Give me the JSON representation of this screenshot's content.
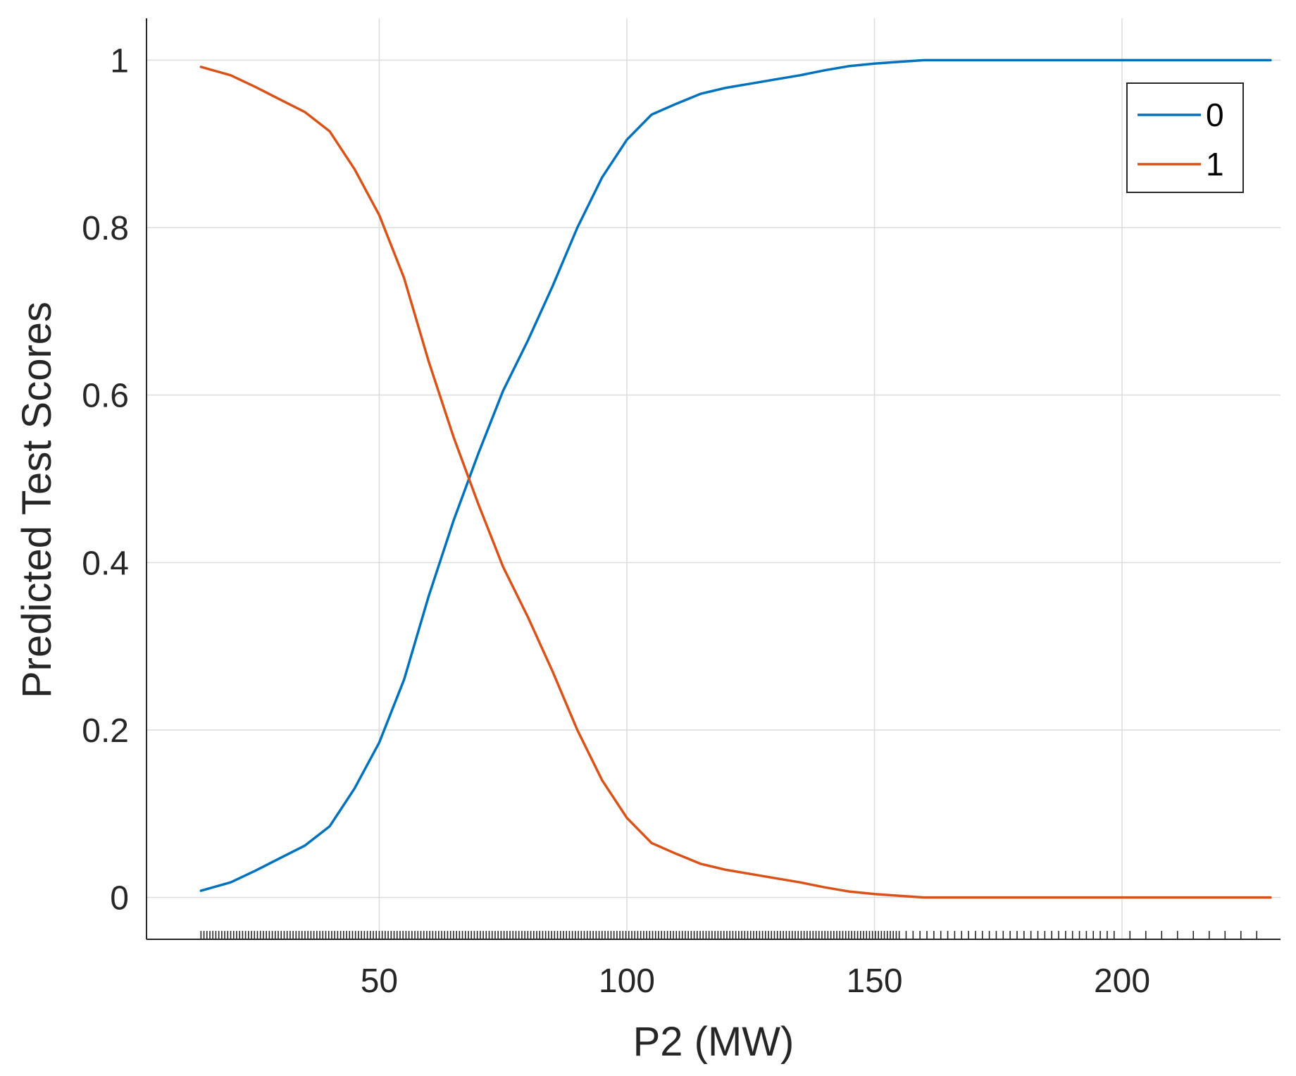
{
  "chart_data": {
    "type": "line",
    "title": "",
    "xlabel": "P2 (MW)",
    "ylabel": "Predicted Test Scores",
    "xlim": [
      3,
      232
    ],
    "ylim": [
      -0.05,
      1.05
    ],
    "xticks": [
      50,
      100,
      150,
      200
    ],
    "yticks": [
      0,
      0.2,
      0.4,
      0.6,
      0.8,
      1
    ],
    "xtick_labels": [
      "50",
      "100",
      "150",
      "200"
    ],
    "ytick_labels": [
      "0",
      "0.2",
      "0.4",
      "0.6",
      "0.8",
      "1"
    ],
    "grid": true,
    "legend_position": "top-right",
    "rug": true,
    "series": [
      {
        "name": "0",
        "color": "#0072BD",
        "x": [
          14,
          20,
          25,
          30,
          35,
          40,
          45,
          50,
          55,
          60,
          65,
          70,
          75,
          80,
          85,
          90,
          95,
          100,
          105,
          110,
          115,
          120,
          125,
          130,
          135,
          140,
          145,
          150,
          155,
          160,
          170,
          180,
          190,
          200,
          210,
          220,
          230
        ],
        "values": [
          0.008,
          0.018,
          0.032,
          0.047,
          0.062,
          0.085,
          0.13,
          0.185,
          0.26,
          0.36,
          0.45,
          0.53,
          0.605,
          0.665,
          0.73,
          0.8,
          0.86,
          0.905,
          0.935,
          0.948,
          0.96,
          0.967,
          0.972,
          0.977,
          0.982,
          0.988,
          0.993,
          0.996,
          0.998,
          1.0,
          1.0,
          1.0,
          1.0,
          1.0,
          1.0,
          1.0,
          1.0
        ]
      },
      {
        "name": "1",
        "color": "#D95319",
        "x": [
          14,
          20,
          25,
          30,
          35,
          40,
          45,
          50,
          55,
          60,
          65,
          70,
          75,
          80,
          85,
          90,
          95,
          100,
          105,
          110,
          115,
          120,
          125,
          130,
          135,
          140,
          145,
          150,
          155,
          160,
          170,
          180,
          190,
          200,
          210,
          220,
          230
        ],
        "values": [
          0.992,
          0.982,
          0.968,
          0.953,
          0.938,
          0.915,
          0.87,
          0.815,
          0.74,
          0.64,
          0.55,
          0.47,
          0.395,
          0.335,
          0.27,
          0.2,
          0.14,
          0.095,
          0.065,
          0.052,
          0.04,
          0.033,
          0.028,
          0.023,
          0.018,
          0.012,
          0.007,
          0.004,
          0.002,
          0.0,
          0.0,
          0.0,
          0.0,
          0.0,
          0.0,
          0.0,
          0.0
        ]
      }
    ]
  }
}
